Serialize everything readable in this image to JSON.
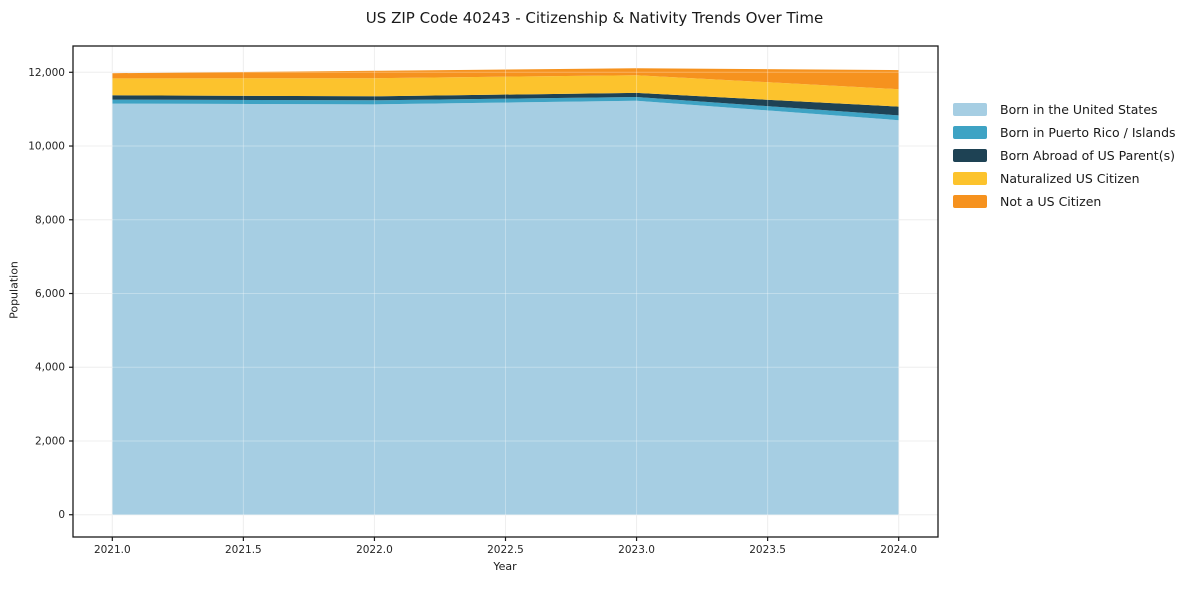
{
  "chart_data": {
    "type": "area",
    "stacked": true,
    "title": "US ZIP Code 40243 - Citizenship & Nativity Trends Over Time",
    "xlabel": "Year",
    "ylabel": "Population",
    "x": [
      2021,
      2022,
      2023,
      2024
    ],
    "series": [
      {
        "name": "Born in the United States",
        "color": "#a6cee3",
        "values": [
          11150,
          11130,
          11230,
          10700
        ]
      },
      {
        "name": "Born in Puerto Rico / Islands",
        "color": "#3ea3c4",
        "values": [
          110,
          110,
          100,
          130
        ]
      },
      {
        "name": "Born Abroad of US Parent(s)",
        "color": "#1e4254",
        "values": [
          115,
          110,
          110,
          240
        ]
      },
      {
        "name": "Naturalized US Citizen",
        "color": "#fcc32d",
        "values": [
          460,
          490,
          480,
          470
        ]
      },
      {
        "name": "Not a US Citizen",
        "color": "#f6921e",
        "values": [
          140,
          200,
          190,
          520
        ]
      }
    ],
    "xticks": [
      2021.0,
      2021.5,
      2022.0,
      2022.5,
      2023.0,
      2023.5,
      2024.0
    ],
    "xtick_labels": [
      "2021.0",
      "2021.5",
      "2022.0",
      "2022.5",
      "2023.0",
      "2023.5",
      "2024.0"
    ],
    "yticks": [
      0,
      2000,
      4000,
      6000,
      8000,
      10000,
      12000
    ],
    "ytick_labels": [
      "0",
      "2,000",
      "4,000",
      "6,000",
      "8,000",
      "10,000",
      "12,000"
    ],
    "xlim": [
      2020.85,
      2024.15
    ],
    "ylim": [
      -604,
      12713
    ],
    "grid": true,
    "legend_position": "outside-right",
    "colors": {
      "grid": "#e8e8e8",
      "grid_overlay": "rgba(255,255,255,0.3)",
      "frame": "#1a1a1a",
      "tick_text": "#262626",
      "background": "#ffffff"
    }
  }
}
